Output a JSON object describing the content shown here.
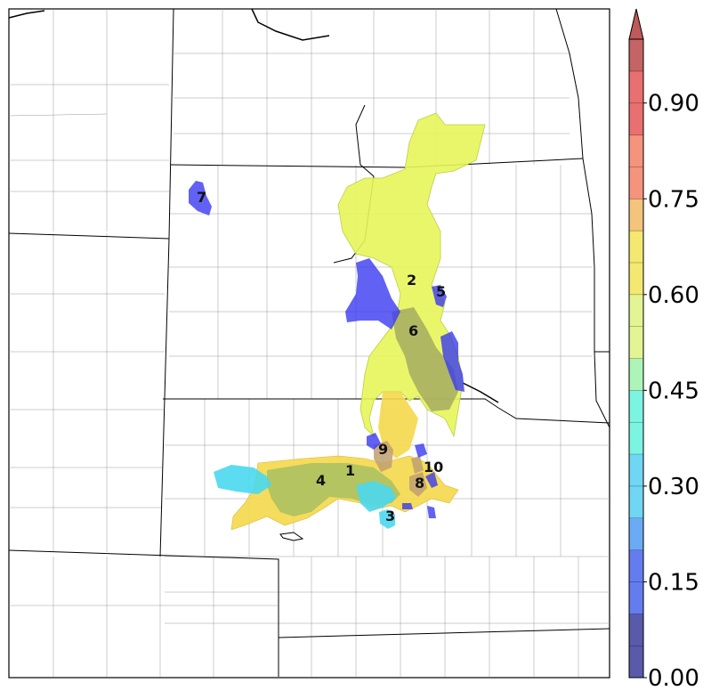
{
  "map": {
    "regions": [
      {
        "id": "1",
        "label": "1"
      },
      {
        "id": "2",
        "label": "2"
      },
      {
        "id": "3",
        "label": "3"
      },
      {
        "id": "4",
        "label": "4"
      },
      {
        "id": "5",
        "label": "5"
      },
      {
        "id": "6",
        "label": "6"
      },
      {
        "id": "7",
        "label": "7"
      },
      {
        "id": "8",
        "label": "8"
      },
      {
        "id": "9",
        "label": "9"
      },
      {
        "id": "10",
        "label": "10"
      }
    ]
  },
  "colorbar": {
    "min": 0.0,
    "max": 1.0,
    "extend": "max",
    "tick_labels": [
      "0.00",
      "0.15",
      "0.30",
      "0.45",
      "0.60",
      "0.75",
      "0.90"
    ],
    "colors": [
      "#23238f",
      "#3050e8",
      "#3a8ff0",
      "#40c8f0",
      "#50f0d8",
      "#90f0a0",
      "#d8f070",
      "#f0e040",
      "#f0b050",
      "#f07050",
      "#e04040",
      "#b03030"
    ]
  }
}
